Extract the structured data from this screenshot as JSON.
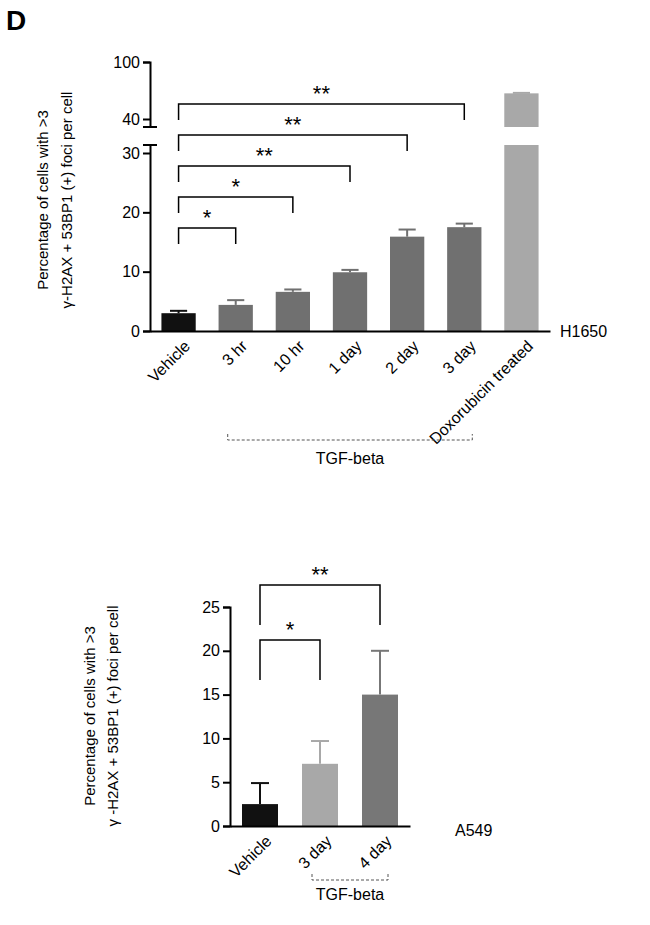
{
  "panel_label": "D",
  "chart_data": [
    {
      "type": "bar",
      "title": "H1650",
      "y_label": [
        "Percentage of cells with >3",
        "γ-H2AX + 53BP1 (+) foci per cell"
      ],
      "categories": [
        "Vehicle",
        "3 hr",
        "10 hr",
        "1 day",
        "2 day",
        "3 day",
        "Doxorubicin treated"
      ],
      "values": [
        3.0,
        4.4,
        6.6,
        9.9,
        15.9,
        17.5,
        67
      ],
      "errors": [
        0.4,
        0.8,
        0.4,
        0.4,
        1.2,
        0.6,
        0.5
      ],
      "colors": [
        "#111111",
        "#707070",
        "#707070",
        "#707070",
        "#707070",
        "#707070",
        "#a8a8a8"
      ],
      "ylim": [
        0,
        100
      ],
      "yticks": [
        0,
        10,
        20,
        30,
        40,
        100
      ],
      "ybreak": [
        30,
        40
      ],
      "group": {
        "label": "TGF-beta",
        "from": "3 hr",
        "to": "3 day"
      },
      "significance": [
        {
          "from": "Vehicle",
          "to": "3 hr",
          "label": "*"
        },
        {
          "from": "Vehicle",
          "to": "10 hr",
          "label": "*"
        },
        {
          "from": "Vehicle",
          "to": "1 day",
          "label": "**"
        },
        {
          "from": "Vehicle",
          "to": "2 day",
          "label": "**"
        },
        {
          "from": "Vehicle",
          "to": "3 day",
          "label": "**"
        }
      ]
    },
    {
      "type": "bar",
      "title": "A549",
      "y_label": [
        "Percentage of cells with >3",
        "γ -H2AX + 53BP1 (+) foci per cell"
      ],
      "categories": [
        "Vehicle",
        "3 day",
        "4 day"
      ],
      "values": [
        2.5,
        7.1,
        15.0
      ],
      "errors": [
        2.4,
        2.6,
        5.0
      ],
      "colors": [
        "#111111",
        "#a8a8a8",
        "#777777"
      ],
      "ylim": [
        0,
        25
      ],
      "yticks": [
        0,
        5,
        10,
        15,
        20,
        25
      ],
      "group": {
        "label": "TGF-beta",
        "from": "3 day",
        "to": "4 day"
      },
      "significance": [
        {
          "from": "Vehicle",
          "to": "3 day",
          "label": "*"
        },
        {
          "from": "Vehicle",
          "to": "4 day",
          "label": "**"
        }
      ]
    }
  ]
}
